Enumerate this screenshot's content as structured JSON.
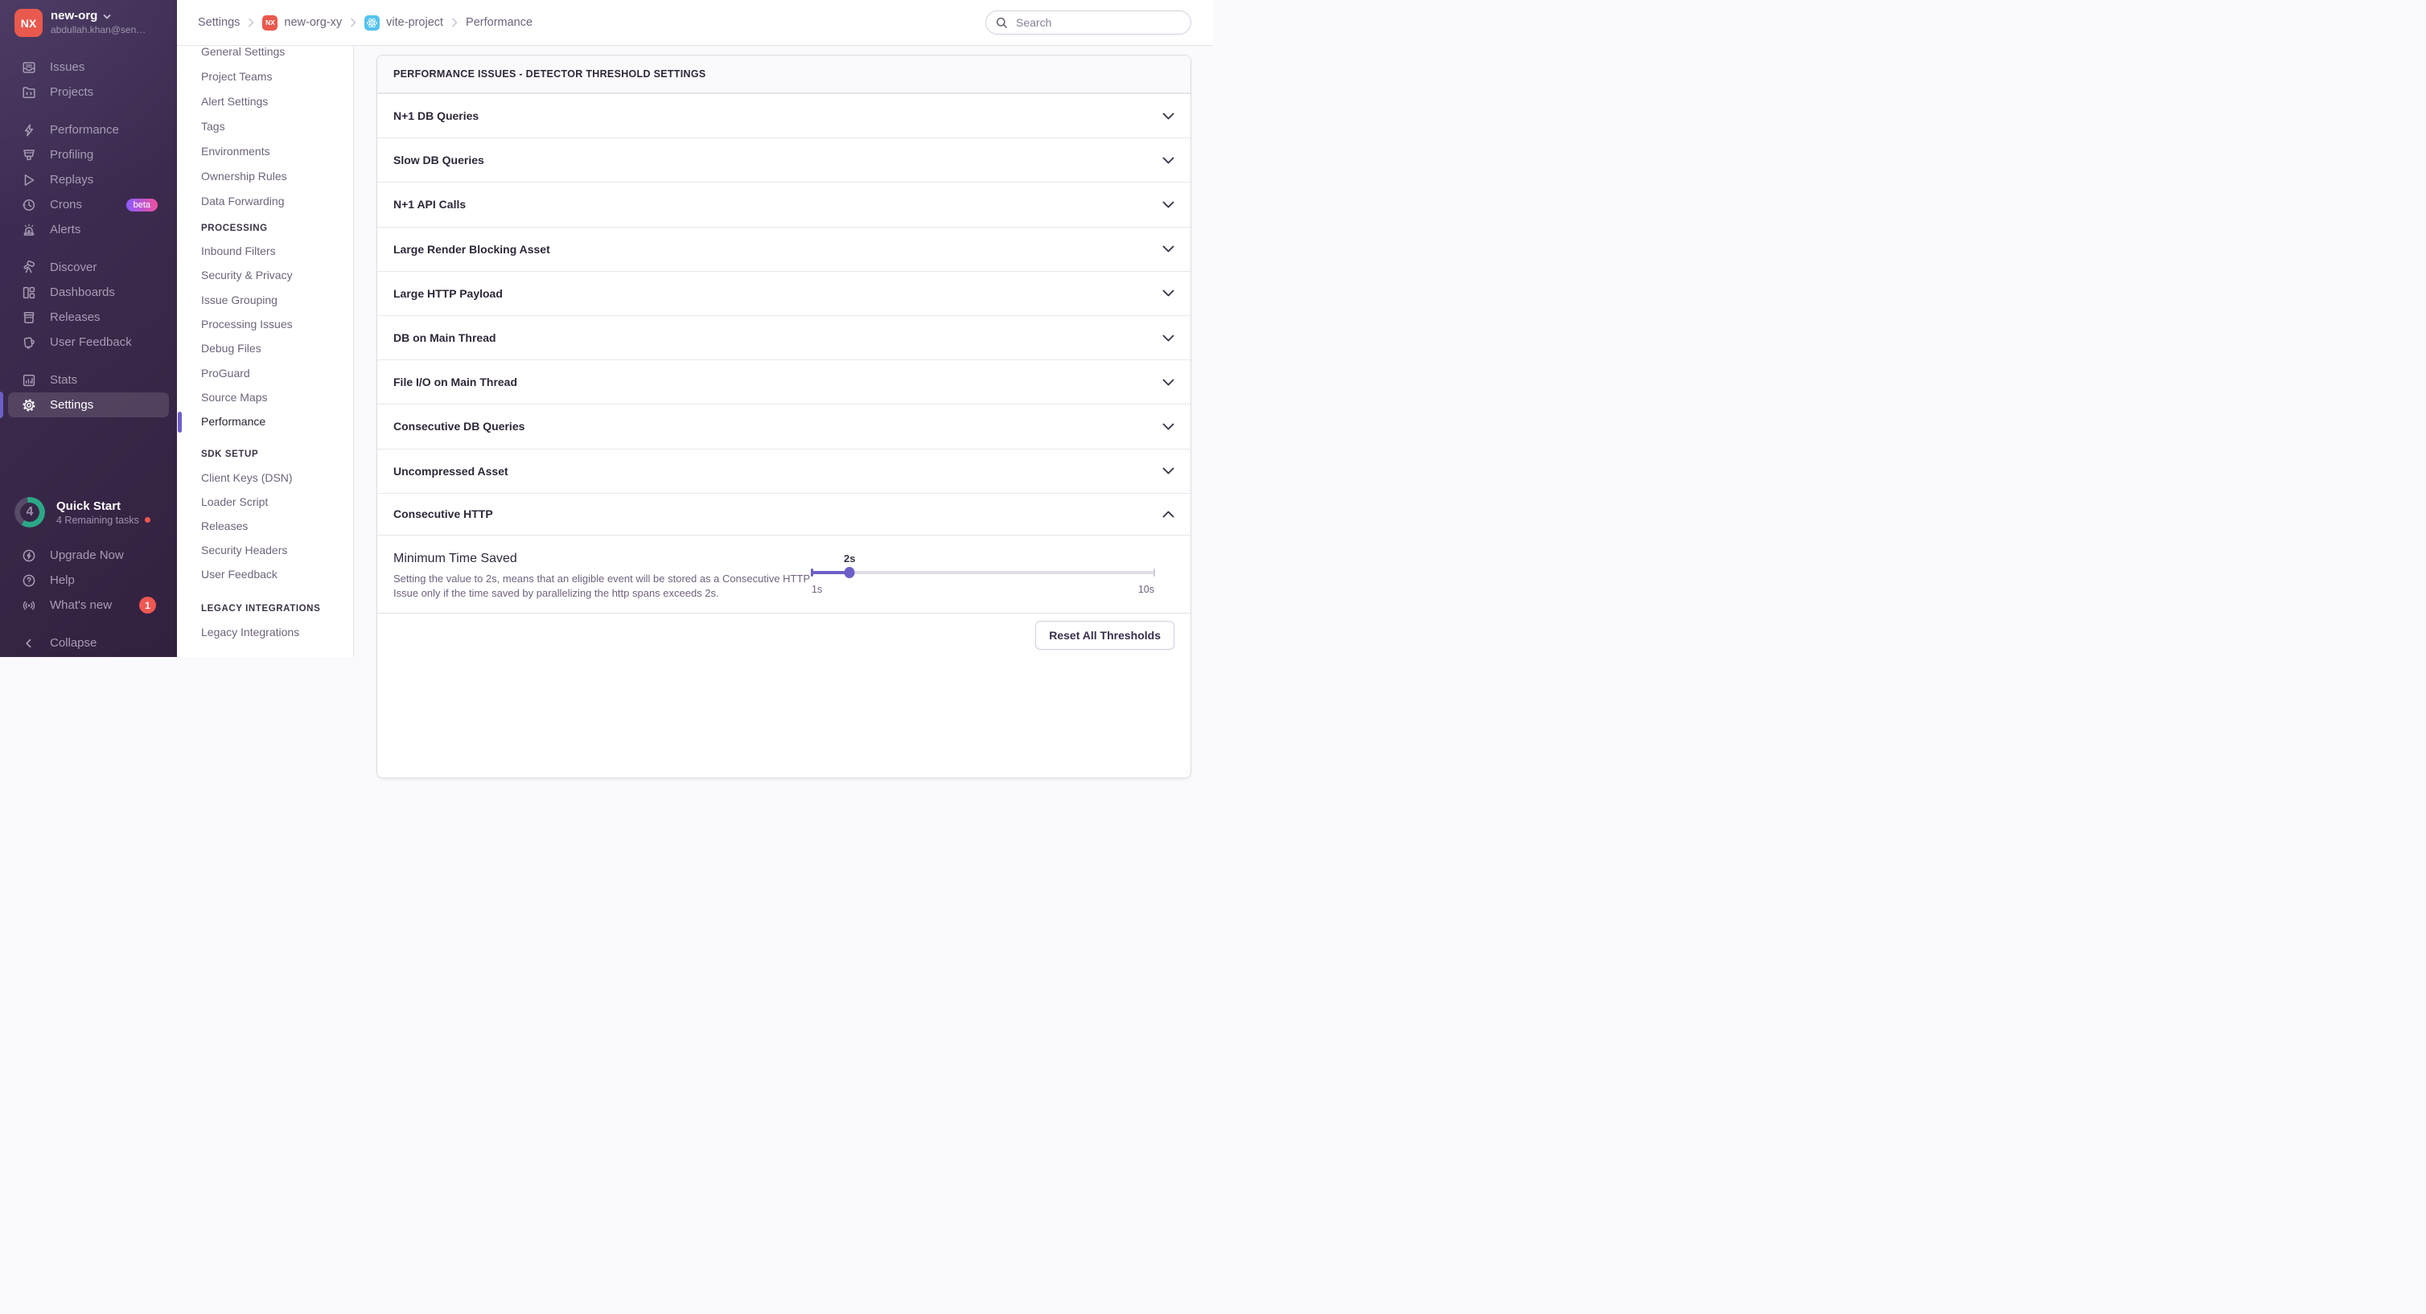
{
  "colors": {
    "accent": "#6C5FC7",
    "avatar": "#E9594E",
    "react": "#54C3EE",
    "red": "#F05751",
    "teal": "#2BA887",
    "beta1": "#8C5BFF",
    "beta2": "#F0509D"
  },
  "sidebar": {
    "org": {
      "initials": "NX",
      "name": "new-org",
      "email": "abdullah.khan@sen…"
    },
    "nav_group1": [
      {
        "label": "Issues"
      },
      {
        "label": "Projects"
      }
    ],
    "nav_group2": [
      {
        "label": "Performance"
      },
      {
        "label": "Profiling"
      },
      {
        "label": "Replays"
      },
      {
        "label": "Crons",
        "badge": "beta"
      },
      {
        "label": "Alerts"
      }
    ],
    "nav_group3": [
      {
        "label": "Discover"
      },
      {
        "label": "Dashboards"
      },
      {
        "label": "Releases"
      },
      {
        "label": "User Feedback"
      }
    ],
    "nav_group4": [
      {
        "label": "Stats"
      },
      {
        "label": "Settings"
      }
    ],
    "quick_start": {
      "count": "4",
      "title": "Quick Start",
      "subtitle": "4 Remaining tasks"
    },
    "footer_nav": [
      {
        "label": "Upgrade Now"
      },
      {
        "label": "Help"
      },
      {
        "label": "What's new",
        "badge": "1"
      }
    ],
    "collapse_label": "Collapse"
  },
  "settings_nav": {
    "top_items": [
      {
        "label": "General Settings"
      },
      {
        "label": "Project Teams"
      },
      {
        "label": "Alert Settings"
      },
      {
        "label": "Tags"
      },
      {
        "label": "Environments"
      },
      {
        "label": "Ownership Rules"
      },
      {
        "label": "Data Forwarding"
      }
    ],
    "section1": {
      "title": "PROCESSING",
      "items": [
        {
          "label": "Inbound Filters"
        },
        {
          "label": "Security & Privacy"
        },
        {
          "label": "Issue Grouping"
        },
        {
          "label": "Processing Issues"
        },
        {
          "label": "Debug Files"
        },
        {
          "label": "ProGuard"
        },
        {
          "label": "Source Maps"
        },
        {
          "label": "Performance",
          "active": true
        }
      ]
    },
    "section2": {
      "title": "SDK SETUP",
      "items": [
        {
          "label": "Client Keys (DSN)"
        },
        {
          "label": "Loader Script"
        },
        {
          "label": "Releases"
        },
        {
          "label": "Security Headers"
        },
        {
          "label": "User Feedback"
        }
      ]
    },
    "section3": {
      "title": "LEGACY INTEGRATIONS",
      "items": [
        {
          "label": "Legacy Integrations"
        }
      ]
    }
  },
  "header": {
    "breadcrumbs": [
      {
        "label": "Settings"
      },
      {
        "label": "new-org-xy",
        "icon": "NX"
      },
      {
        "label": "vite-project",
        "icon": "react"
      },
      {
        "label": "Performance"
      }
    ],
    "search_placeholder": "Search"
  },
  "main": {
    "panel_title": "PERFORMANCE ISSUES - DETECTOR THRESHOLD SETTINGS",
    "detector_rows": [
      {
        "label": "N+1 DB Queries",
        "state": "collapsed"
      },
      {
        "label": "Slow DB Queries",
        "state": "collapsed"
      },
      {
        "label": "N+1 API Calls",
        "state": "collapsed"
      },
      {
        "label": "Large Render Blocking Asset",
        "state": "collapsed"
      },
      {
        "label": "Large HTTP Payload",
        "state": "collapsed"
      },
      {
        "label": "DB on Main Thread",
        "state": "collapsed"
      },
      {
        "label": "File I/O on Main Thread",
        "state": "collapsed"
      },
      {
        "label": "Consecutive DB Queries",
        "state": "collapsed"
      },
      {
        "label": "Uncompressed Asset",
        "state": "collapsed"
      },
      {
        "label": "Consecutive HTTP",
        "state": "expanded"
      }
    ],
    "expanded": {
      "setting_label": "Minimum Time Saved",
      "setting_description": "Setting the value to 2s, means that an eligible event will be stored as a Consecutive HTTP Issue only if the time saved by parallelizing the http spans exceeds 2s.",
      "slider": {
        "value_label": "2s",
        "min_label": "1s",
        "max_label": "10s",
        "percent": 11.1
      }
    },
    "footer": {
      "reset_button": "Reset All Thresholds"
    }
  }
}
